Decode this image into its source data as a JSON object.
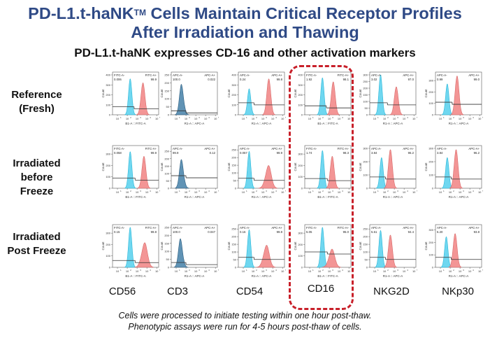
{
  "header": {
    "title_line1_main": "PD-L1.t-haNK",
    "title_line1_sup": "TM",
    "title_line1_rest": " Cells Maintain Critical Receptor Profiles",
    "title_line2": "After Irradiation and Thawing",
    "subtitle": "PD-L1.t-haNK expresses CD-16 and other activation markers"
  },
  "rows": [
    {
      "label_lines": [
        "Reference",
        "(Fresh)"
      ]
    },
    {
      "label_lines": [
        "Irradiated",
        "before",
        "Freeze"
      ]
    },
    {
      "label_lines": [
        "Irradiated",
        "Post Freeze"
      ]
    }
  ],
  "columns": [
    "CD56",
    "CD3",
    "CD54",
    "CD16",
    "NKG2D",
    "NKp30"
  ],
  "highlighted_column": "CD16",
  "footer": {
    "line1": "Cells were processed to initiate testing within one hour post-thaw.",
    "line2": "Phenotypic assays were run for 4-5 hours post-thaw of cells."
  },
  "colors": {
    "title": "#2f4a86",
    "negative_fill": "#5fd3ee",
    "positive_fill": "#f28a8a",
    "cd3_fill": "#4f87ad",
    "highlight_border": "#c8202a"
  },
  "chart_data": {
    "type": "histogram-grid",
    "y_axis_label": "Count",
    "x_ticks": [
      "10^1",
      "10^2",
      "10^3",
      "10^4",
      "10^5"
    ],
    "panels": [
      {
        "row": 0,
        "col": 0,
        "marker": "CD56",
        "channel": "FITC",
        "xlabel": "B1-A :: FITC-A",
        "neg_label": "FITC-A-",
        "pos_label": "FITC-A+",
        "neg_pct": "0.006",
        "pos_pct": "99.9",
        "ymax": 400,
        "yticks": [
          0,
          100,
          200,
          300,
          400
        ],
        "neg_peak": 2.3,
        "neg_height": 360,
        "pos_peak": 3.6,
        "pos_height": 320,
        "gate_y": 80,
        "gate_x": 2.7,
        "mode": "two"
      },
      {
        "row": 0,
        "col": 1,
        "marker": "CD3",
        "channel": "APC",
        "xlabel": "R1-A :: APC-A",
        "neg_label": "APC-A-",
        "pos_label": "APC-A+",
        "neg_pct": "100.0",
        "pos_pct": "0.022",
        "ymax": 250,
        "yticks": [
          0,
          50,
          100,
          150,
          200,
          250
        ],
        "neg_peak": 1.6,
        "neg_height": 250,
        "gate_y": 25,
        "gate_x": 2.0,
        "mode": "cd3"
      },
      {
        "row": 0,
        "col": 2,
        "marker": "CD54",
        "channel": "APC",
        "xlabel": "R1-A :: APC-A",
        "neg_label": "APC-A-",
        "pos_label": "APC-A+",
        "neg_pct": "0.24",
        "pos_pct": "99.8",
        "ymax": 400,
        "yticks": [
          0,
          100,
          200,
          300,
          400
        ],
        "neg_peak": 1.6,
        "neg_height": 260,
        "pos_peak": 3.6,
        "pos_height": 360,
        "gate_y": 120,
        "gate_x": 2.1,
        "mode": "two"
      },
      {
        "row": 0,
        "col": 3,
        "marker": "CD16",
        "channel": "FITC",
        "xlabel": "B1-A :: FITC-A",
        "neg_label": "FITC-A-",
        "pos_label": "FITC-A+",
        "neg_pct": "1.92",
        "pos_pct": "98.1",
        "ymax": 400,
        "yticks": [
          0,
          100,
          200,
          300,
          400
        ],
        "neg_peak": 2.3,
        "neg_height": 370,
        "pos_peak": 3.4,
        "pos_height": 330,
        "gate_y": 90,
        "gate_x": 2.7,
        "mode": "two"
      },
      {
        "row": 0,
        "col": 4,
        "marker": "NKG2D",
        "channel": "APC",
        "xlabel": "R1-A :: APC-A",
        "neg_label": "APC-A-",
        "pos_label": "APC-A+",
        "neg_pct": "3.02",
        "pos_pct": "97.0",
        "ymax": 300,
        "yticks": [
          0,
          50,
          100,
          150,
          200,
          250,
          300
        ],
        "neg_peak": 1.6,
        "neg_height": 300,
        "pos_peak": 3.2,
        "pos_height": 210,
        "gate_y": 90,
        "gate_x": 2.3,
        "mode": "two"
      },
      {
        "row": 0,
        "col": 5,
        "marker": "NKp30",
        "channel": "APC",
        "xlabel": "R1-A :: APC-A",
        "neg_label": "APC-A-",
        "pos_label": "APC-A+",
        "neg_pct": "0.99",
        "pos_pct": "99.0",
        "ymax": 350,
        "yticks": [
          0,
          100,
          200,
          300
        ],
        "neg_peak": 1.7,
        "neg_height": 270,
        "pos_peak": 2.7,
        "pos_height": 340,
        "gate_y": 110,
        "gate_x": 2.2,
        "mode": "two"
      },
      {
        "row": 1,
        "col": 0,
        "marker": "CD56",
        "channel": "FITC",
        "xlabel": "B1-A :: FITC-A",
        "neg_label": "FITC-A-",
        "pos_label": "FITC-A+",
        "neg_pct": "0.058",
        "pos_pct": "99.9",
        "ymax": 350,
        "yticks": [
          0,
          100,
          200,
          300
        ],
        "neg_peak": 2.3,
        "neg_height": 320,
        "pos_peak": 3.7,
        "pos_height": 280,
        "gate_y": 90,
        "gate_x": 2.8,
        "mode": "two"
      },
      {
        "row": 1,
        "col": 1,
        "marker": "CD3",
        "channel": "APC",
        "xlabel": "R1-A :: APC-A",
        "neg_label": "APC-A-",
        "pos_label": "APC-A+",
        "neg_pct": "99.9",
        "pos_pct": "0.12",
        "ymax": 270,
        "yticks": [
          0,
          50,
          100,
          150,
          200,
          250
        ],
        "neg_peak": 1.6,
        "neg_height": 255,
        "gate_y": 85,
        "gate_x": 2.0,
        "mode": "cd3"
      },
      {
        "row": 1,
        "col": 2,
        "marker": "CD54",
        "channel": "APC",
        "xlabel": "R1-A :: APC-A",
        "neg_label": "APC-A-",
        "pos_label": "APC-A+",
        "neg_pct": "0.057",
        "pos_pct": "99.9",
        "ymax": 260,
        "yticks": [
          0,
          50,
          100,
          150,
          200,
          250
        ],
        "neg_peak": 1.6,
        "neg_height": 240,
        "pos_peak": 3.5,
        "pos_height": 185,
        "gate_y": 65,
        "gate_x": 2.1,
        "mode": "broad"
      },
      {
        "row": 1,
        "col": 3,
        "marker": "CD16",
        "channel": "FITC",
        "xlabel": "B1-A :: FITC-A",
        "neg_label": "FITC-A-",
        "pos_label": "FITC-A+",
        "neg_pct": "1.74",
        "pos_pct": "98.3",
        "ymax": 350,
        "yticks": [
          0,
          100,
          200,
          300
        ],
        "neg_peak": 2.3,
        "neg_height": 330,
        "pos_peak": 3.3,
        "pos_height": 280,
        "gate_y": 85,
        "gate_x": 2.8,
        "mode": "two"
      },
      {
        "row": 1,
        "col": 4,
        "marker": "NKG2D",
        "channel": "APC",
        "xlabel": "R1-A :: APC-A",
        "neg_label": "APC-A-",
        "pos_label": "APC-A+",
        "neg_pct": "3.84",
        "pos_pct": "96.2",
        "ymax": 300,
        "yticks": [
          0,
          100,
          200,
          300
        ],
        "neg_peak": 1.7,
        "neg_height": 230,
        "pos_peak": 2.6,
        "pos_height": 290,
        "gate_y": 85,
        "gate_x": 2.1,
        "mode": "two"
      },
      {
        "row": 1,
        "col": 5,
        "marker": "NKp30",
        "channel": "APC",
        "xlabel": "R1-A :: APC-A",
        "neg_label": "APC-A-",
        "pos_label": "APC-A+",
        "neg_pct": "3.84",
        "pos_pct": "96.2",
        "ymax": 300,
        "yticks": [
          0,
          100,
          200,
          300
        ],
        "neg_peak": 1.7,
        "neg_height": 230,
        "pos_peak": 2.6,
        "pos_height": 290,
        "gate_y": 85,
        "gate_x": 2.1,
        "mode": "two"
      },
      {
        "row": 2,
        "col": 0,
        "marker": "CD56",
        "channel": "FITC",
        "xlabel": "B1-A :: FITC-A",
        "neg_label": "FITC-A-",
        "pos_label": "FITC-A+",
        "neg_pct": "0.15",
        "pos_pct": "99.8",
        "ymax": 350,
        "yticks": [
          0,
          100,
          200,
          300
        ],
        "neg_peak": 2.3,
        "neg_height": 350,
        "pos_peak": 3.7,
        "pos_height": 270,
        "gate_y": 60,
        "gate_x": 2.8,
        "mode": "broad"
      },
      {
        "row": 2,
        "col": 1,
        "marker": "CD3",
        "channel": "APC",
        "xlabel": "R1-A :: APC-A",
        "neg_label": "APC-A-",
        "pos_label": "APC-A+",
        "neg_pct": "100.0",
        "pos_pct": "0.047",
        "ymax": 250,
        "yticks": [
          0,
          50,
          100,
          150,
          200,
          250
        ],
        "neg_peak": 1.5,
        "neg_height": 235,
        "gate_y": 30,
        "gate_x": 2.0,
        "mode": "cd3"
      },
      {
        "row": 2,
        "col": 2,
        "marker": "CD54",
        "channel": "APC",
        "xlabel": "R1-A :: APC-A",
        "neg_label": "APC-A-",
        "pos_label": "APC-A+",
        "neg_pct": "0.16",
        "pos_pct": "99.8",
        "ymax": 260,
        "yticks": [
          0,
          50,
          100,
          150,
          200,
          250
        ],
        "neg_peak": 1.6,
        "neg_height": 245,
        "pos_peak": 3.3,
        "pos_height": 180,
        "gate_y": 65,
        "gate_x": 2.1,
        "mode": "broad"
      },
      {
        "row": 2,
        "col": 3,
        "marker": "CD16",
        "channel": "FITC",
        "xlabel": "B1-A :: FITC-A",
        "neg_label": "FITC-A-",
        "pos_label": "FITC-A+",
        "neg_pct": "5.05",
        "pos_pct": "95.0",
        "ymax": 350,
        "yticks": [
          0,
          100,
          200,
          300
        ],
        "neg_peak": 2.3,
        "neg_height": 350,
        "pos_peak": 3.2,
        "pos_height": 200,
        "gate_y": 135,
        "gate_x": 2.8,
        "mode": "broad"
      },
      {
        "row": 2,
        "col": 4,
        "marker": "NKG2D",
        "channel": "APC",
        "xlabel": "R1-A :: APC-A",
        "neg_label": "APC-A-",
        "pos_label": "APC-A+",
        "neg_pct": "5.61",
        "pos_pct": "94.4",
        "ymax": 260,
        "yticks": [
          0,
          50,
          100,
          150,
          200,
          250
        ],
        "neg_peak": 1.6,
        "neg_height": 240,
        "pos_peak": 2.6,
        "pos_height": 210,
        "gate_y": 65,
        "gate_x": 2.1,
        "mode": "two"
      },
      {
        "row": 2,
        "col": 5,
        "marker": "NKp30",
        "channel": "APC",
        "xlabel": "R1-A :: APC-A",
        "neg_label": "APC-A-",
        "pos_label": "APC-A+",
        "neg_pct": "6.20",
        "pos_pct": "93.8",
        "ymax": 320,
        "yticks": [
          0,
          100,
          200,
          300
        ],
        "neg_peak": 1.6,
        "neg_height": 245,
        "pos_peak": 2.5,
        "pos_height": 270,
        "gate_y": 80,
        "gate_x": 2.1,
        "mode": "two"
      }
    ]
  }
}
